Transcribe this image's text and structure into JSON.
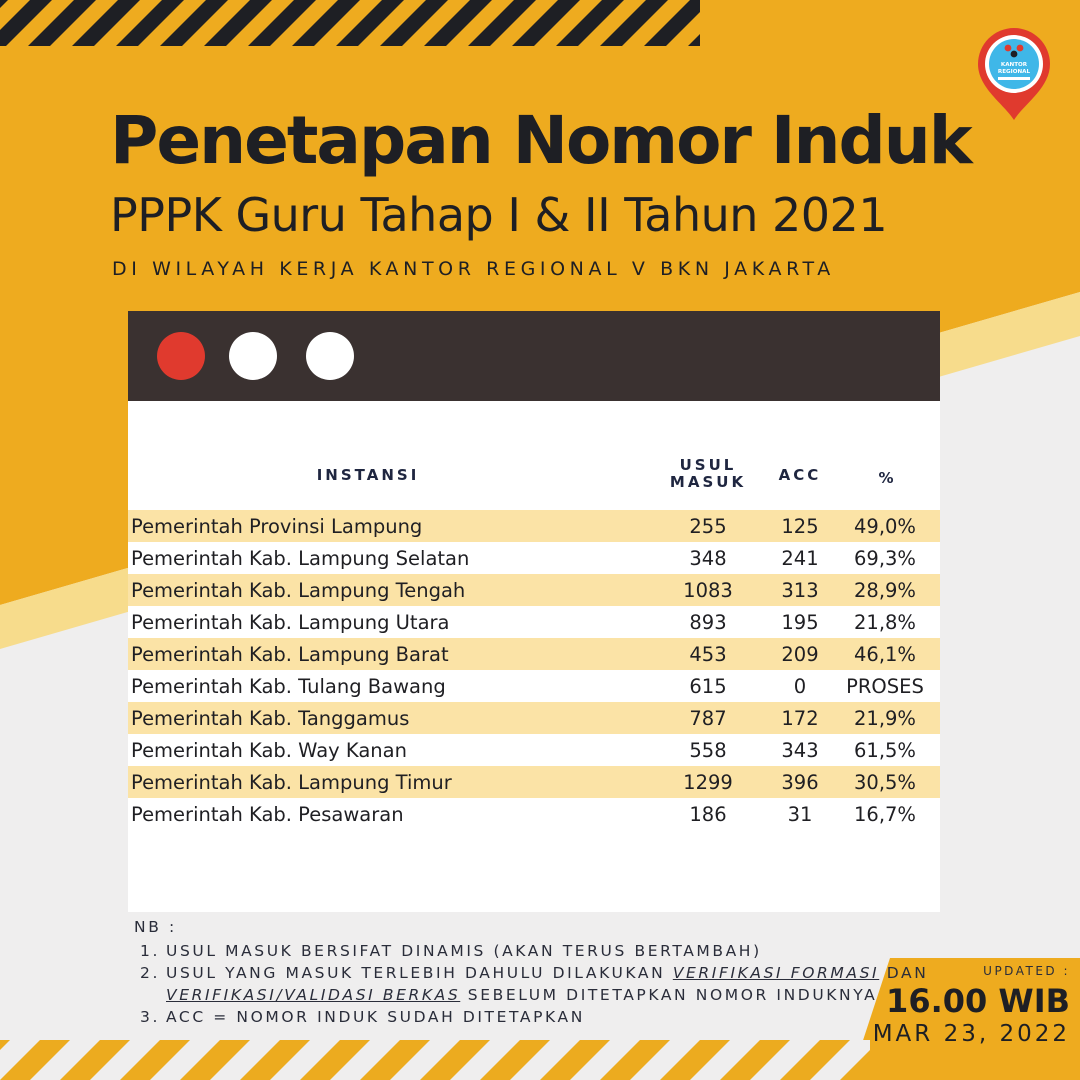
{
  "header": {
    "title_line1": "Penetapan Nomor Induk",
    "title_line2": "PPPK Guru Tahap I & II Tahun 2021",
    "subtitle": "DI WILAYAH KERJA KANTOR REGIONAL V BKN JAKARTA"
  },
  "logo": {
    "icon": "kantor-regional-location-pin-logo",
    "text": "KANTOR REGIONAL"
  },
  "colors": {
    "accent_yellow": "#eeab1f",
    "window_bar": "#3a3130",
    "row_stripe": "#fbe3a6",
    "dot_red": "#e03a2e",
    "dark": "#1e1f24"
  },
  "table": {
    "headers": {
      "instansi": "INSTANSI",
      "usul_masuk_line1": "USUL",
      "usul_masuk_line2": "MASUK",
      "acc": "ACC",
      "percent": "%"
    },
    "rows": [
      {
        "instansi": "Pemerintah Provinsi Lampung",
        "usul_masuk": "255",
        "acc": "125",
        "percent": "49,0%"
      },
      {
        "instansi": "Pemerintah Kab. Lampung Selatan",
        "usul_masuk": "348",
        "acc": "241",
        "percent": "69,3%"
      },
      {
        "instansi": "Pemerintah Kab. Lampung Tengah",
        "usul_masuk": "1083",
        "acc": "313",
        "percent": "28,9%"
      },
      {
        "instansi": "Pemerintah Kab. Lampung Utara",
        "usul_masuk": "893",
        "acc": "195",
        "percent": "21,8%"
      },
      {
        "instansi": "Pemerintah Kab. Lampung Barat",
        "usul_masuk": "453",
        "acc": "209",
        "percent": "46,1%"
      },
      {
        "instansi": "Pemerintah Kab. Tulang Bawang",
        "usul_masuk": "615",
        "acc": "0",
        "percent": "PROSES"
      },
      {
        "instansi": "Pemerintah Kab. Tanggamus",
        "usul_masuk": "787",
        "acc": "172",
        "percent": "21,9%"
      },
      {
        "instansi": "Pemerintah Kab. Way Kanan",
        "usul_masuk": "558",
        "acc": "343",
        "percent": "61,5%"
      },
      {
        "instansi": "Pemerintah Kab. Lampung Timur",
        "usul_masuk": "1299",
        "acc": "396",
        "percent": "30,5%"
      },
      {
        "instansi": "Pemerintah Kab. Pesawaran",
        "usul_masuk": "186",
        "acc": "31",
        "percent": "16,7%"
      }
    ]
  },
  "notes": {
    "label": "NB :",
    "item1_num": "1.",
    "item1": "USUL MASUK BERSIFAT DINAMIS (AKAN TERUS BERTAMBAH)",
    "item2_num": "2.",
    "item2_part1": "USUL YANG MASUK TERLEBIH DAHULU DILAKUKAN ",
    "item2_link1": "VERIFIKASI FORMASI",
    "item2_part2": " DAN ",
    "item2_link2": "VERIFIKASI/VALIDASI BERKAS",
    "item2_part3": " SEBELUM DITETAPKAN NOMOR INDUKNYA",
    "item3_num": "3.",
    "item3": "ACC = NOMOR INDUK SUDAH DITETAPKAN"
  },
  "updated": {
    "label": "UPDATED :",
    "time": "16.00 WIB",
    "date": "MAR 23, 2022"
  }
}
